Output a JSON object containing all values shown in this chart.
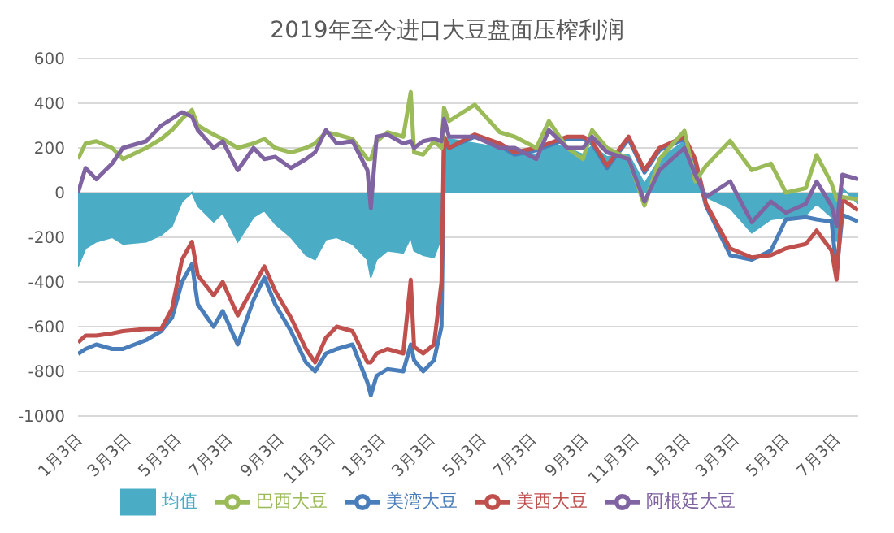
{
  "chart_data": {
    "type": "line",
    "title": "2019年至今进口大豆盘面压榨利润",
    "x": [
      "2019-01-03",
      "2019-01-12",
      "2019-01-25",
      "2019-02-13",
      "2019-02-26",
      "2019-03-26",
      "2019-04-13",
      "2019-04-26",
      "2019-05-08",
      "2019-05-20",
      "2019-05-27",
      "2019-06-15",
      "2019-06-26",
      "2019-07-14",
      "2019-08-02",
      "2019-08-15",
      "2019-08-28",
      "2019-09-16",
      "2019-10-04",
      "2019-10-15",
      "2019-10-28",
      "2019-11-10",
      "2019-11-29",
      "2019-12-17",
      "2019-12-21",
      "2019-12-28",
      "2020-01-10",
      "2020-01-29",
      "2020-02-07",
      "2020-02-11",
      "2020-02-22",
      "2020-03-06",
      "2020-03-15",
      "2020-03-18",
      "2020-03-24",
      "2020-04-24",
      "2020-05-24",
      "2020-06-11",
      "2020-07-07",
      "2020-07-22",
      "2020-08-13",
      "2020-09-01",
      "2020-09-12",
      "2020-09-30",
      "2020-10-26",
      "2020-11-14",
      "2020-12-02",
      "2021-01-01",
      "2021-01-14",
      "2021-01-27",
      "2021-02-25",
      "2021-03-23",
      "2021-04-15",
      "2021-05-03",
      "2021-05-27",
      "2021-06-09",
      "2021-06-27",
      "2021-07-03",
      "2021-07-10",
      "2021-07-29"
    ],
    "series": [
      {
        "name": "均值",
        "type": "area",
        "color": "#4bacc6",
        "values": [
          -330,
          -250,
          -220,
          -200,
          -230,
          -220,
          -190,
          -150,
          -40,
          0,
          -60,
          -130,
          -90,
          -220,
          -110,
          -80,
          -140,
          -200,
          -280,
          -300,
          -210,
          -200,
          -230,
          -300,
          -380,
          -300,
          -260,
          -270,
          -200,
          -260,
          -280,
          -290,
          -200,
          250,
          240,
          220,
          200,
          190,
          170,
          220,
          200,
          170,
          210,
          160,
          170,
          40,
          150,
          230,
          100,
          -20,
          -70,
          -180,
          -120,
          -110,
          -100,
          -50,
          -110,
          -220,
          20,
          -50
        ]
      },
      {
        "name": "美湾大豆",
        "color": "#4a7ebb",
        "values": [
          -722,
          -700,
          -680,
          -700,
          -700,
          -660,
          -620,
          -560,
          -400,
          -320,
          -500,
          -600,
          -530,
          -680,
          -480,
          -380,
          -500,
          -620,
          -760,
          -800,
          -720,
          -700,
          -680,
          -850,
          -907,
          -820,
          -790,
          -800,
          -680,
          -750,
          -800,
          -750,
          -600,
          220,
          200,
          250,
          210,
          170,
          190,
          210,
          240,
          240,
          220,
          110,
          240,
          90,
          190,
          240,
          140,
          -60,
          -280,
          -300,
          -260,
          -120,
          -110,
          -120,
          -130,
          -350,
          -100,
          -130
        ]
      },
      {
        "name": "美西大豆",
        "color": "#c0504d",
        "values": [
          -671,
          -640,
          -640,
          -630,
          -620,
          -610,
          -610,
          -520,
          -300,
          -220,
          -370,
          -460,
          -400,
          -550,
          -420,
          -330,
          -440,
          -560,
          -700,
          -760,
          -650,
          -600,
          -620,
          -760,
          -760,
          -720,
          -700,
          -720,
          -390,
          -690,
          -720,
          -680,
          -400,
          250,
          200,
          260,
          220,
          180,
          200,
          220,
          250,
          250,
          230,
          120,
          250,
          100,
          200,
          250,
          150,
          -50,
          -250,
          -290,
          -280,
          -250,
          -230,
          -170,
          -260,
          -390,
          -30,
          -80
        ]
      },
      {
        "name": "巴西大豆",
        "color": "#9bbb59",
        "values": [
          150,
          220,
          230,
          200,
          150,
          200,
          240,
          280,
          330,
          370,
          300,
          260,
          240,
          200,
          220,
          240,
          200,
          180,
          200,
          220,
          270,
          260,
          240,
          150,
          150,
          230,
          270,
          250,
          450,
          180,
          170,
          230,
          200,
          380,
          320,
          393,
          270,
          250,
          200,
          320,
          200,
          150,
          280,
          200,
          150,
          -58,
          150,
          277,
          50,
          120,
          232,
          100,
          130,
          0,
          20,
          168,
          40,
          -30,
          -20,
          -30
        ]
      },
      {
        "name": "阿根廷大豆",
        "color": "#8064a2",
        "values": [
          0,
          110,
          60,
          130,
          200,
          230,
          300,
          330,
          360,
          340,
          280,
          200,
          230,
          100,
          200,
          150,
          160,
          110,
          150,
          180,
          280,
          220,
          230,
          100,
          -70,
          250,
          260,
          220,
          230,
          200,
          230,
          240,
          230,
          330,
          250,
          250,
          200,
          200,
          150,
          280,
          200,
          200,
          250,
          180,
          150,
          -40,
          100,
          200,
          80,
          -20,
          50,
          -133,
          -40,
          -90,
          -50,
          50,
          -60,
          -150,
          80,
          60
        ]
      }
    ],
    "xlim": [
      "2019-01-03",
      "2021-07-29"
    ],
    "xticks": [
      {
        "value": "2019-01-03",
        "label": "1月3日"
      },
      {
        "value": "2019-03-03",
        "label": "3月3日"
      },
      {
        "value": "2019-05-03",
        "label": "5月3日"
      },
      {
        "value": "2019-07-03",
        "label": "7月3日"
      },
      {
        "value": "2019-09-03",
        "label": "9月3日"
      },
      {
        "value": "2019-11-03",
        "label": "11月3日"
      },
      {
        "value": "2020-01-03",
        "label": "1月3日"
      },
      {
        "value": "2020-03-03",
        "label": "3月3日"
      },
      {
        "value": "2020-05-03",
        "label": "5月3日"
      },
      {
        "value": "2020-07-03",
        "label": "7月3日"
      },
      {
        "value": "2020-09-03",
        "label": "9月3日"
      },
      {
        "value": "2020-11-03",
        "label": "11月3日"
      },
      {
        "value": "2021-01-03",
        "label": "1月3日"
      },
      {
        "value": "2021-03-03",
        "label": "3月3日"
      },
      {
        "value": "2021-05-03",
        "label": "5月3日"
      },
      {
        "value": "2021-07-03",
        "label": "7月3日"
      }
    ],
    "ylim": [
      -1000,
      600
    ],
    "yticks": [
      -1000,
      -800,
      -600,
      -400,
      -200,
      0,
      200,
      400,
      600
    ],
    "grid": "y",
    "legend": "bottom"
  }
}
